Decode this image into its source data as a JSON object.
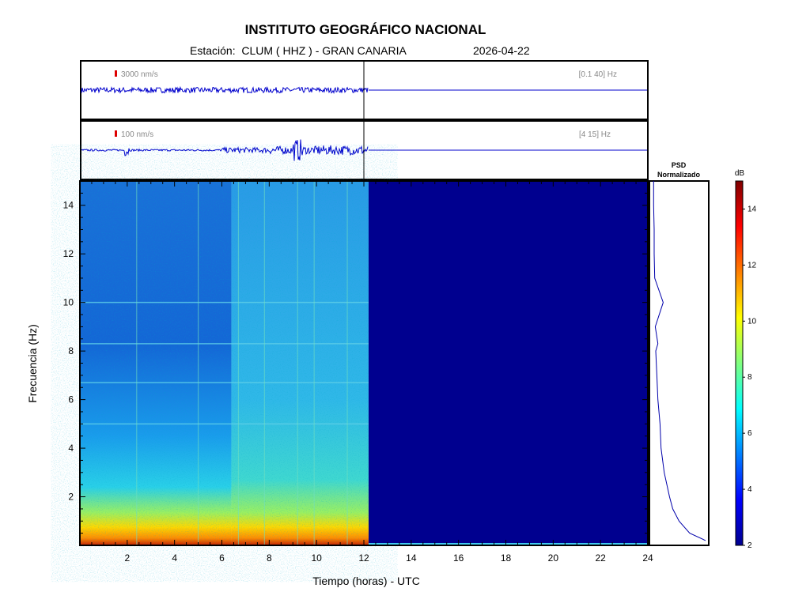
{
  "header": {
    "title": "INSTITUTO GEOGRÁFICO NACIONAL",
    "station_prefix": "Estación:",
    "station": "CLUM ( HHZ ) - GRAN CANARIA",
    "date": "2026-04-22"
  },
  "trace1": {
    "scale": "3000 nm/s",
    "band": "[0.1 40] Hz"
  },
  "trace2": {
    "scale": "100 nm/s",
    "band": "[4 15] Hz"
  },
  "psd": {
    "title_line1": "PSD",
    "title_line2": "Normalizado"
  },
  "colorbar": {
    "unit": "dB",
    "ticks": [
      "2",
      "4",
      "6",
      "8",
      "10",
      "12",
      "14"
    ],
    "range": [
      2,
      15
    ]
  },
  "chart_data": {
    "type": "heatmap",
    "title": "INSTITUTO GEOGRÁFICO NACIONAL",
    "xlabel": "Tiempo (horas) - UTC",
    "ylabel": "Frecuencia  (Hz)",
    "xlim": [
      0,
      24
    ],
    "ylim": [
      0,
      15
    ],
    "x_ticks": [
      "2",
      "4",
      "6",
      "8",
      "10",
      "12",
      "14",
      "16",
      "18",
      "20",
      "22",
      "24"
    ],
    "y_ticks": [
      "2",
      "4",
      "6",
      "8",
      "10",
      "12",
      "14"
    ],
    "data_end_hour": 12.2,
    "noise_increase_start_hour": 6.4,
    "spectral_lines_hz": [
      10,
      8.3,
      6.7,
      5.0
    ],
    "psd_normalized": {
      "freq_hz": [
        0.2,
        0.5,
        1,
        1.5,
        2,
        3,
        4,
        5,
        6,
        7,
        8,
        8.3,
        9,
        10,
        11,
        12,
        13,
        14,
        15
      ],
      "level": [
        1.0,
        0.7,
        0.5,
        0.38,
        0.32,
        0.22,
        0.16,
        0.14,
        0.1,
        0.08,
        0.06,
        0.1,
        0.05,
        0.2,
        0.04,
        0.03,
        0.03,
        0.02,
        0.02
      ]
    }
  }
}
